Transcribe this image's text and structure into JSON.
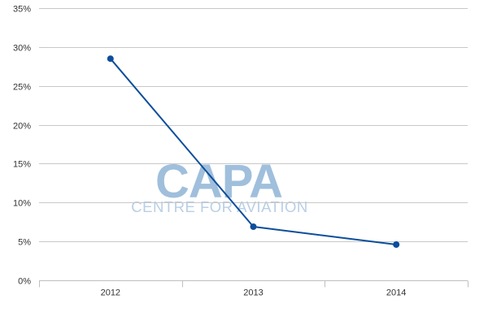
{
  "watermark": {
    "main": "CAPA",
    "sub": "CENTRE FOR AVIATION",
    "color": "#9fbfdc"
  },
  "chart_data": {
    "type": "line",
    "title": "",
    "xlabel": "",
    "ylabel": "",
    "categories": [
      "2012",
      "2013",
      "2014"
    ],
    "series": [
      {
        "values": [
          28.5,
          6.9,
          4.6
        ],
        "color": "#0c4e9b"
      }
    ],
    "ylim": [
      0,
      35
    ],
    "yticks": [
      0,
      5,
      10,
      15,
      20,
      25,
      30,
      35
    ],
    "ytick_labels": [
      "0%",
      "5%",
      "10%",
      "15%",
      "20%",
      "25%",
      "30%",
      "35%"
    ],
    "grid": true,
    "legend": "none"
  }
}
